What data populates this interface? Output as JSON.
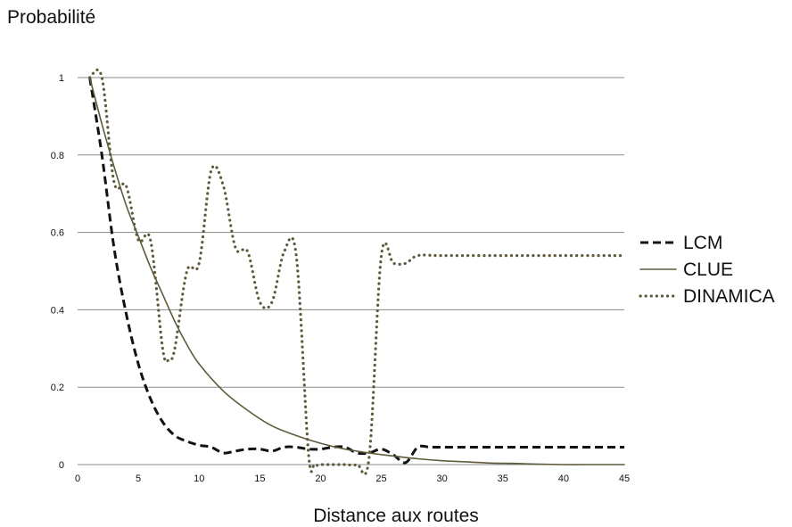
{
  "chart_data": {
    "type": "line",
    "title": "",
    "ylabel": "Probabilité",
    "xlabel": "Distance aux routes",
    "xlim": [
      0,
      45
    ],
    "ylim": [
      0,
      1.1
    ],
    "xticks": [
      0,
      5,
      10,
      15,
      20,
      25,
      30,
      35,
      40,
      45
    ],
    "yticks": [
      0,
      0.2,
      0.4,
      0.6,
      0.8,
      1
    ],
    "grid": "horizontal",
    "legend_position": "right",
    "series": [
      {
        "name": "LCM",
        "style": "dashed",
        "color": "#111111",
        "x": [
          1,
          2,
          3,
          4,
          5,
          6,
          7,
          8,
          9,
          10,
          11,
          12,
          13,
          14,
          15,
          16,
          17,
          18,
          19,
          20,
          21,
          22,
          23,
          24,
          25,
          26,
          27,
          28,
          29,
          30,
          35,
          40,
          45
        ],
        "y": [
          1.0,
          0.8,
          0.56,
          0.39,
          0.26,
          0.17,
          0.11,
          0.075,
          0.06,
          0.05,
          0.045,
          0.03,
          0.035,
          0.04,
          0.04,
          0.035,
          0.045,
          0.045,
          0.04,
          0.04,
          0.045,
          0.045,
          0.03,
          0.03,
          0.04,
          0.025,
          0.005,
          0.045,
          0.045,
          0.045,
          0.045,
          0.045,
          0.045
        ]
      },
      {
        "name": "CLUE",
        "style": "solid",
        "color": "#5f5a3c",
        "x": [
          1,
          2,
          3,
          4,
          5,
          6,
          7,
          8,
          9,
          10,
          12,
          14,
          16,
          18,
          20,
          22,
          24,
          26,
          28,
          30,
          32,
          34,
          36,
          38,
          40,
          42,
          45
        ],
        "y": [
          1.0,
          0.88,
          0.77,
          0.67,
          0.59,
          0.51,
          0.44,
          0.37,
          0.31,
          0.26,
          0.19,
          0.14,
          0.1,
          0.075,
          0.055,
          0.04,
          0.03,
          0.022,
          0.015,
          0.01,
          0.007,
          0.004,
          0.003,
          0.001,
          0.0,
          0.0,
          0.0
        ]
      },
      {
        "name": "DINAMICA",
        "style": "dotted",
        "color": "#5f5a3c",
        "x": [
          1,
          2,
          3,
          4,
          5,
          6,
          7,
          7.5,
          8,
          9,
          10,
          11,
          12,
          13,
          14,
          15,
          16,
          17,
          18,
          19,
          19.5,
          20,
          21,
          22,
          23,
          24,
          25,
          26,
          27,
          28,
          30,
          35,
          40,
          45
        ],
        "y": [
          1.0,
          1.0,
          0.73,
          0.72,
          0.58,
          0.58,
          0.3,
          0.27,
          0.3,
          0.5,
          0.52,
          0.76,
          0.72,
          0.56,
          0.55,
          0.42,
          0.42,
          0.55,
          0.54,
          0.03,
          0.0,
          0.0,
          0.0,
          0.0,
          0.0,
          0.02,
          0.54,
          0.52,
          0.52,
          0.54,
          0.54,
          0.54,
          0.54,
          0.54
        ]
      }
    ]
  }
}
